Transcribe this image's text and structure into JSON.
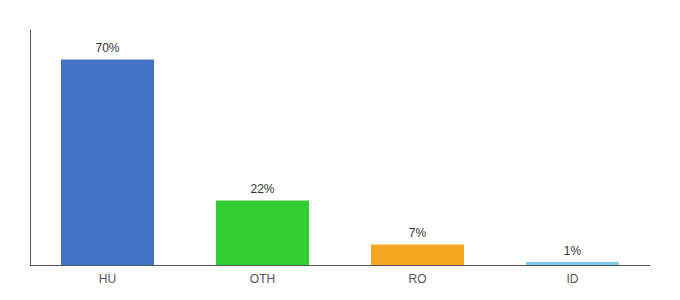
{
  "chart_data": {
    "type": "bar",
    "categories": [
      "HU",
      "OTH",
      "RO",
      "ID"
    ],
    "values": [
      70,
      22,
      7,
      1
    ],
    "value_labels": [
      "70%",
      "22%",
      "7%",
      "1%"
    ],
    "colors": [
      "#4472c4",
      "#33cc33",
      "#f5a623",
      "#7ec8e3"
    ],
    "ylim": [
      0,
      80
    ],
    "grid": false,
    "data_labels": true,
    "tick_labels": "x"
  }
}
